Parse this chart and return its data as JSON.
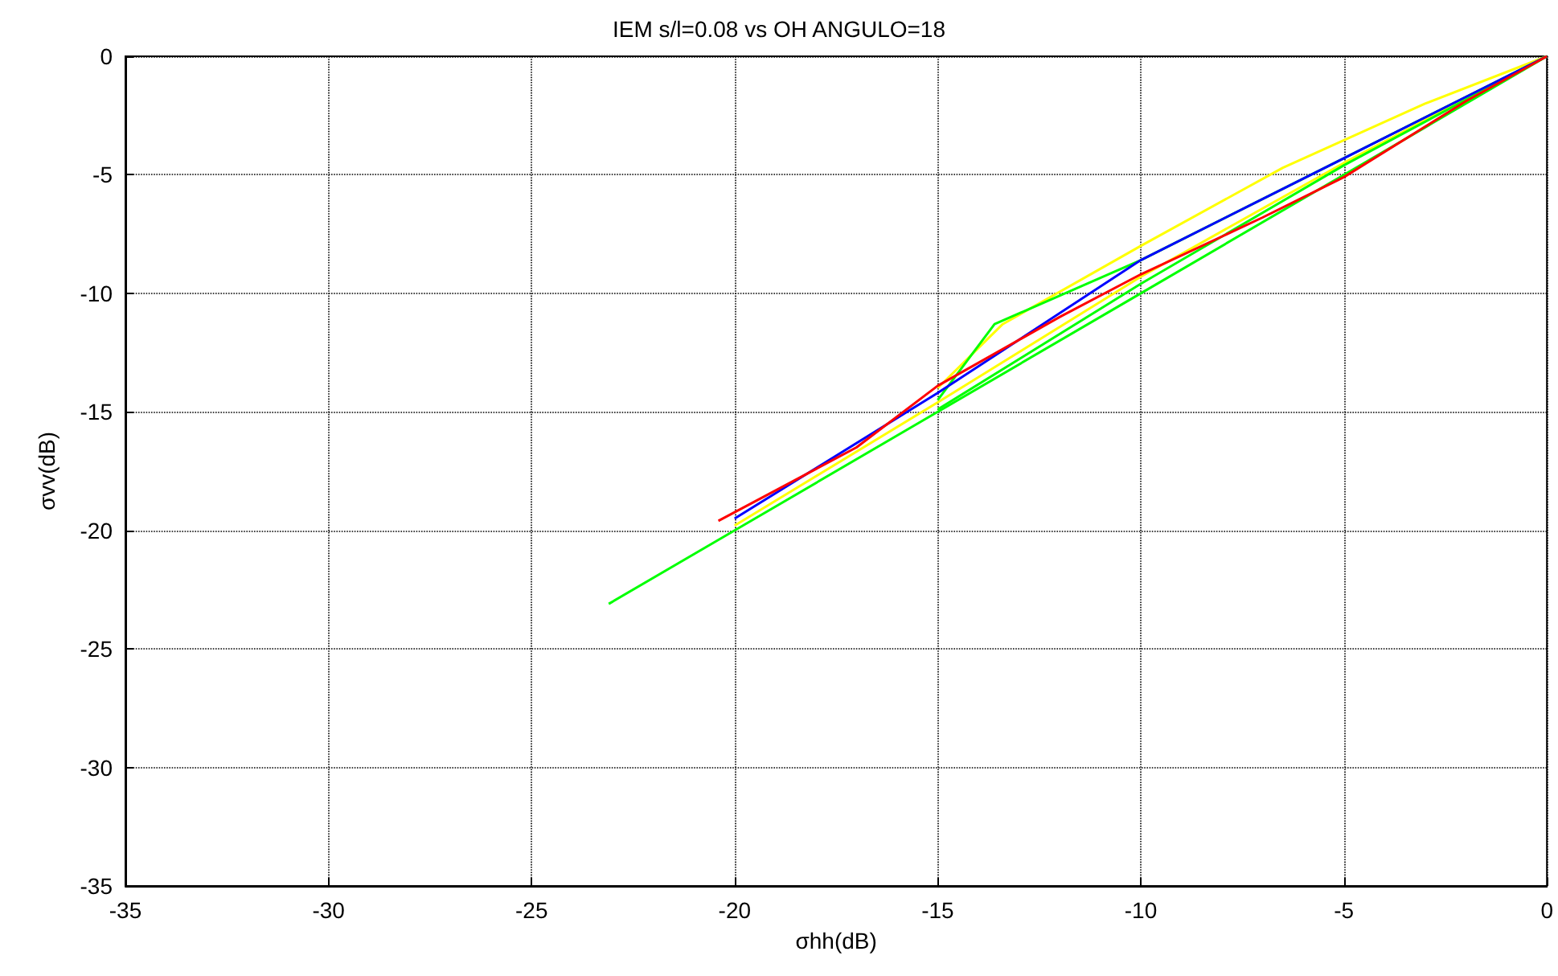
{
  "chart_data": {
    "type": "line",
    "title": "IEM s/l=0.08 vs OH ANGULO=18",
    "xlabel": "σhh(dB)",
    "ylabel": "σvv(dB)",
    "xlim": [
      -35,
      0
    ],
    "ylim": [
      -35,
      0
    ],
    "xticks": [
      -35,
      -30,
      -25,
      -20,
      -15,
      -10,
      -5,
      0
    ],
    "yticks": [
      -35,
      -30,
      -25,
      -20,
      -15,
      -10,
      -5,
      0
    ],
    "grid": true,
    "marker": "none",
    "line_style": "solid",
    "series": [
      {
        "color": "#ffff00",
        "x": [
          -15,
          -13.4,
          -10,
          -6.5,
          -3,
          0
        ],
        "values": [
          -14.0,
          -11.3,
          -8.0,
          -4.7,
          -2.0,
          0
        ]
      },
      {
        "color": "#ffff00",
        "x": [
          -20,
          -15,
          -10,
          -5,
          0
        ],
        "values": [
          -19.8,
          -14.6,
          -9.3,
          -4.5,
          0
        ]
      },
      {
        "color": "#00ff00",
        "x": [
          -23.1,
          -20,
          -15,
          -10,
          -5,
          0
        ],
        "values": [
          -23.1,
          -20,
          -15,
          -10,
          -5,
          0
        ]
      },
      {
        "color": "#00ff00",
        "x": [
          -15,
          -10,
          -5,
          0
        ],
        "values": [
          -14.9,
          -9.6,
          -4.6,
          0
        ]
      },
      {
        "color": "#00ff00",
        "x": [
          -15,
          -13.6,
          -10,
          -5,
          0
        ],
        "values": [
          -14.5,
          -11.3,
          -8.6,
          -4.3,
          0
        ]
      },
      {
        "color": "#0000ff",
        "x": [
          -20,
          -15,
          -10,
          -5,
          0
        ],
        "values": [
          -19.5,
          -14.2,
          -8.6,
          -4.3,
          0
        ]
      },
      {
        "color": "#ff0000",
        "x": [
          -20.4,
          -17,
          -15,
          -12,
          -10,
          -7,
          -5,
          -2,
          0
        ],
        "values": [
          -19.6,
          -16.5,
          -13.9,
          -11,
          -9.2,
          -6.8,
          -5.1,
          -1.9,
          0
        ]
      }
    ]
  }
}
